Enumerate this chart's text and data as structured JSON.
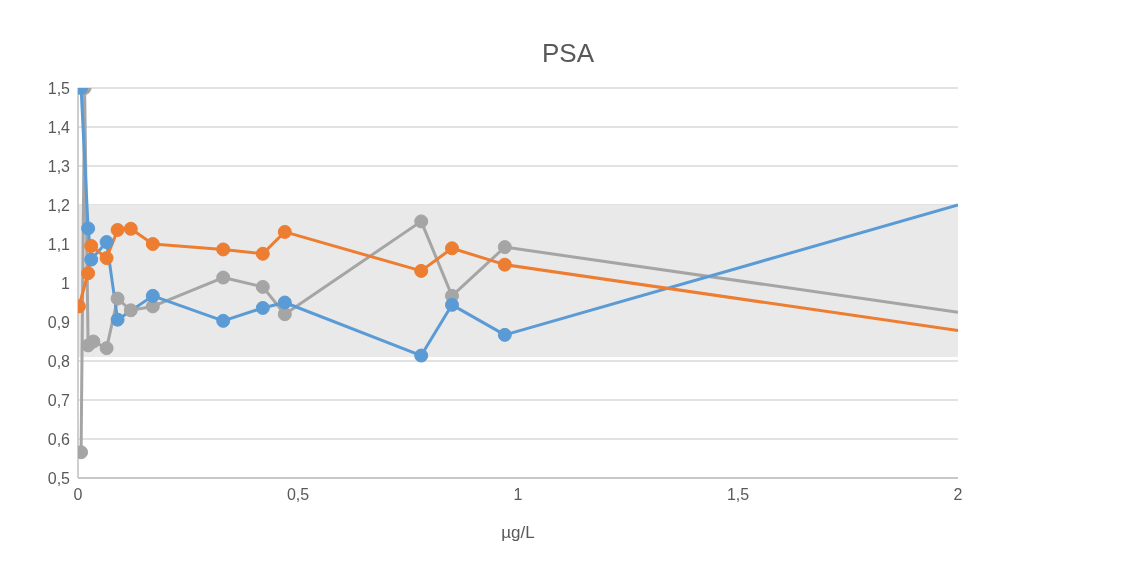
{
  "chart_data": {
    "type": "line",
    "title": "PSA",
    "xlabel": "µg/L",
    "xlim": [
      0,
      2
    ],
    "ylim": [
      0.5,
      1.5
    ],
    "xticks": [
      0,
      {
        "value": 0.5,
        "label": "0,5"
      },
      1,
      {
        "value": 1.5,
        "label": "1,5"
      },
      2
    ],
    "yticks": [
      {
        "value": 0.5,
        "label": "0,5"
      },
      {
        "value": 0.6,
        "label": "0,6"
      },
      {
        "value": 0.7,
        "label": "0,7"
      },
      {
        "value": 0.8,
        "label": "0,8"
      },
      {
        "value": 0.9,
        "label": "0,9"
      },
      1,
      {
        "value": 1.1,
        "label": "1,1"
      },
      {
        "value": 1.2,
        "label": "1,2"
      },
      {
        "value": 1.3,
        "label": "1,3"
      },
      {
        "value": 1.4,
        "label": "1,4"
      },
      {
        "value": 1.5,
        "label": "1,5"
      }
    ],
    "grid": "y",
    "marker": "circle",
    "line_style": "solid",
    "bands": [
      {
        "axis": "y",
        "from": 0.81,
        "to": 1.2,
        "color": "#e9e9e9"
      }
    ],
    "series": [
      {
        "color": "#ed7d31",
        "x": [
          0.002,
          0.023,
          0.03,
          0.065,
          0.09,
          0.12,
          0.17,
          0.33,
          0.42,
          0.47,
          0.78,
          0.85,
          0.97,
          2
        ],
        "values": [
          0.94,
          1.025,
          1.095,
          1.064,
          1.136,
          1.139,
          1.1,
          1.086,
          1.075,
          1.131,
          1.031,
          1.089,
          1.047,
          0.878
        ]
      },
      {
        "color": "#5b9bd5",
        "x": [
          0.007,
          0.023,
          0.03,
          0.065,
          0.09,
          0.17,
          0.33,
          0.42,
          0.47,
          0.78,
          0.85,
          0.97,
          2
        ],
        "values": [
          1.5,
          1.14,
          1.06,
          1.105,
          0.906,
          0.967,
          0.903,
          0.936,
          0.95,
          0.814,
          0.944,
          0.867,
          1.2
        ]
      },
      {
        "color": "#a5a5a5",
        "x": [
          0.007,
          0.015,
          0.023,
          0.035,
          0.065,
          0.09,
          0.12,
          0.17,
          0.33,
          0.42,
          0.47,
          0.78,
          0.85,
          0.97,
          2
        ],
        "values": [
          0.566,
          1.5,
          0.84,
          0.85,
          0.833,
          0.96,
          0.93,
          0.94,
          1.014,
          0.99,
          0.92,
          1.158,
          0.967,
          1.092,
          0.925
        ]
      }
    ]
  }
}
